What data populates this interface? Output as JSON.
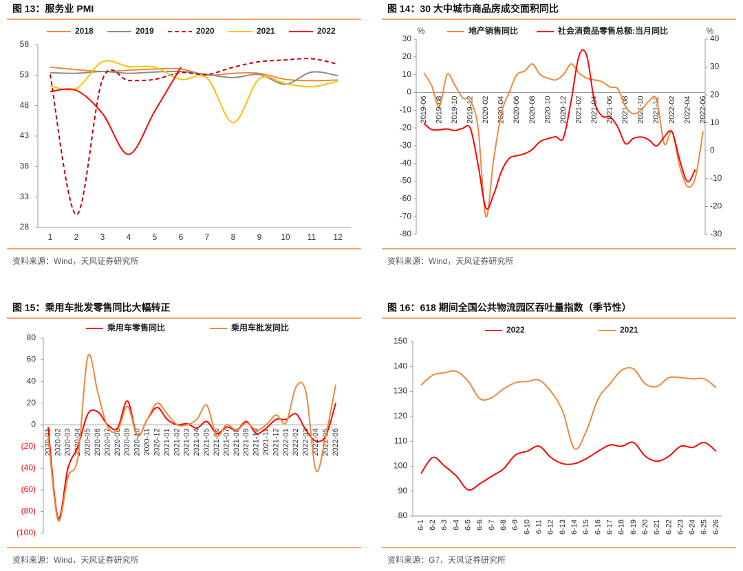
{
  "chart_data": [
    {
      "type": "line",
      "title": "图 13：服务业 PMI",
      "source": "资料来源：Wind，天风证券研究所",
      "categories": [
        "1",
        "2",
        "3",
        "4",
        "5",
        "6",
        "7",
        "8",
        "9",
        "10",
        "11",
        "12"
      ],
      "ylim": [
        28,
        58
      ],
      "yticks": [
        28,
        33,
        38,
        43,
        48,
        53,
        58
      ],
      "legend": "top",
      "series": [
        {
          "name": "2018",
          "color": "#f0883a",
          "values": [
            54.3,
            53.9,
            53.6,
            53.8,
            54.0,
            54.0,
            53.0,
            53.3,
            53.3,
            52.3,
            52.1,
            52.2
          ]
        },
        {
          "name": "2019",
          "color": "#8c8c8c",
          "values": [
            53.4,
            53.3,
            53.6,
            53.3,
            53.5,
            53.6,
            53.1,
            52.6,
            53.1,
            51.5,
            53.5,
            52.9
          ]
        },
        {
          "name": "2020",
          "color": "#c00000",
          "dashed": true,
          "values": [
            53.1,
            30.1,
            52.3,
            52.1,
            52.3,
            53.4,
            53.1,
            54.3,
            55.2,
            55.5,
            55.7,
            54.8
          ]
        },
        {
          "name": "2021",
          "color": "#ffc000",
          "values": [
            51.2,
            50.8,
            55.2,
            54.4,
            54.3,
            52.3,
            52.5,
            45.2,
            52.4,
            51.6,
            51.1,
            52.0
          ]
        },
        {
          "name": "2022",
          "color": "#ff0000",
          "values": [
            50.3,
            50.5,
            46.7,
            40.0,
            47.1,
            54.3,
            null,
            null,
            null,
            null,
            null,
            null
          ]
        }
      ]
    },
    {
      "type": "line",
      "title": "图 14：30 大中城市商品房成交面积同比",
      "source": "资料来源：Wind，天风证券研究所",
      "ylabel": "%",
      "y2label": "%",
      "categories": [
        "2019-06",
        null,
        "2019-08",
        null,
        "2019-10",
        null,
        "2019-12",
        null,
        "2020-02",
        null,
        "2020-04",
        null,
        "2020-06",
        null,
        "2020-08",
        null,
        "2020-10",
        null,
        "2020-12",
        null,
        "2021-02",
        null,
        "2021-04",
        null,
        "2021-06",
        null,
        "2021-08",
        null,
        "2021-10",
        null,
        "2021-12",
        null,
        "2022-02",
        null,
        "2022-04",
        null,
        "2022-06"
      ],
      "ylim": [
        -80,
        30
      ],
      "yticks": [
        -80,
        -70,
        -60,
        -50,
        -40,
        -30,
        -20,
        -10,
        0,
        10,
        20,
        30
      ],
      "y2lim": [
        -30,
        40
      ],
      "y2ticks": [
        -30,
        -20,
        -10,
        0,
        10,
        20,
        30,
        40
      ],
      "legend": "top",
      "series": [
        {
          "name": "地产销售同比",
          "color": "#f0883a",
          "values": [
            11,
            4,
            -8,
            10,
            4,
            -3,
            -5,
            -20,
            -70,
            -38,
            -12,
            0,
            10,
            12,
            16,
            10,
            8,
            7,
            10,
            16,
            11,
            8,
            7,
            6,
            3,
            2,
            -8,
            -12,
            -10,
            -5,
            -4,
            -29,
            -22,
            -42,
            -53,
            -48,
            -22
          ]
        },
        {
          "name": "社会消费品零售总额:当月同比",
          "color": "#ff0000",
          "axis": "y2",
          "values": [
            9.8,
            7.6,
            7.5,
            7.8,
            7.2,
            8.0,
            8.0,
            -5,
            -20.5,
            -15.8,
            -7.5,
            -2.8,
            -1.8,
            -1.1,
            0.5,
            3.3,
            4.3,
            5.0,
            4.6,
            18,
            34,
            34.2,
            17.7,
            12.4,
            12.1,
            8.5,
            2.5,
            4.4,
            4.9,
            3.9,
            1.7,
            5,
            6.7,
            -3.5,
            -11.1,
            -6.7,
            null
          ]
        }
      ]
    },
    {
      "type": "line",
      "title": "图 15：乘用车批发零售同比大幅转正",
      "source": "资料来源：Wind，天风证券研究所",
      "categories": [
        "2020-01",
        "2020-02",
        "2020-03",
        "2020-04",
        "2020-05",
        "2020-06",
        "2020-07",
        "2020-08",
        "2020-09",
        "2020-10",
        "2020-11",
        "2020-12",
        "2021-01",
        "2021-02",
        "2021-03",
        "2021-04",
        "2021-05",
        "2021-06",
        "2021-07",
        "2021-08",
        "2021-09",
        "2021-10",
        "2021-11",
        "2021-12",
        "2022-01",
        "2022-02",
        "2022-03",
        "2022-04",
        "2022-05",
        "2022-06"
      ],
      "ylim": [
        -100,
        80
      ],
      "yticks": [
        {
          "value": -100,
          "label": "(100)"
        },
        {
          "value": -80,
          "label": "(80)"
        },
        {
          "value": -60,
          "label": "(60)"
        },
        {
          "value": -40,
          "label": "(40)"
        },
        {
          "value": -20,
          "label": "(20)"
        },
        0,
        20,
        40,
        60,
        80
      ],
      "negative_tick_color": "#ff0000",
      "legend": "top",
      "series": [
        {
          "name": "乘用车零售同比",
          "color": "#ff0000",
          "values": [
            -2,
            -86,
            -40,
            -20,
            10,
            12,
            0,
            -3,
            22,
            -10,
            5,
            16,
            5,
            0,
            1,
            -3,
            3,
            -8,
            -2,
            -5,
            3,
            -8,
            -3,
            5,
            5,
            10,
            -5,
            -15,
            -10,
            20
          ]
        },
        {
          "name": "乘用车批发同比",
          "color": "#f0883a",
          "values": [
            -10,
            -88,
            -48,
            -30,
            63,
            30,
            -2,
            -5,
            17,
            -10,
            5,
            20,
            10,
            0,
            0,
            5,
            18,
            -10,
            0,
            -5,
            2,
            -5,
            0,
            9,
            2,
            35,
            30,
            -42,
            -10,
            37
          ]
        }
      ]
    },
    {
      "type": "line",
      "title": "图 16：618 期间全国公共物流园区吞吐量指数（季节性）",
      "source": "资料来源：G7，天风证券研究所",
      "categories": [
        "6-1",
        "6-2",
        "6-3",
        "6-4",
        "6-5",
        "6-6",
        "6-7",
        "6-8",
        "6-9",
        "6-10",
        "6-11",
        "6-12",
        "6-13",
        "6-14",
        "6-15",
        "6-16",
        "6-17",
        "6-18",
        "6-19",
        "6-20",
        "6-21",
        "6-22",
        "6-23",
        "6-24",
        "6-25",
        "6-26"
      ],
      "ylim": [
        80,
        150
      ],
      "yticks": [
        80,
        90,
        100,
        110,
        120,
        130,
        140,
        150
      ],
      "legend": "top",
      "series": [
        {
          "name": "2022",
          "color": "#ff0000",
          "values": [
            97,
            103.5,
            100,
            96,
            90.5,
            93,
            96,
            99,
            104.5,
            106,
            108,
            103.5,
            101,
            101,
            103,
            106,
            108.5,
            108,
            109.5,
            104,
            102,
            104,
            108,
            107.5,
            109.5,
            106
          ]
        },
        {
          "name": "2021",
          "color": "#f0883a",
          "values": [
            132.5,
            136.5,
            137.5,
            138,
            134,
            127,
            127.5,
            131,
            133.5,
            134,
            134.5,
            130,
            122,
            107,
            114,
            127,
            133,
            138.5,
            139,
            133,
            132,
            135.5,
            135.5,
            135,
            135,
            131.5
          ]
        }
      ]
    }
  ]
}
